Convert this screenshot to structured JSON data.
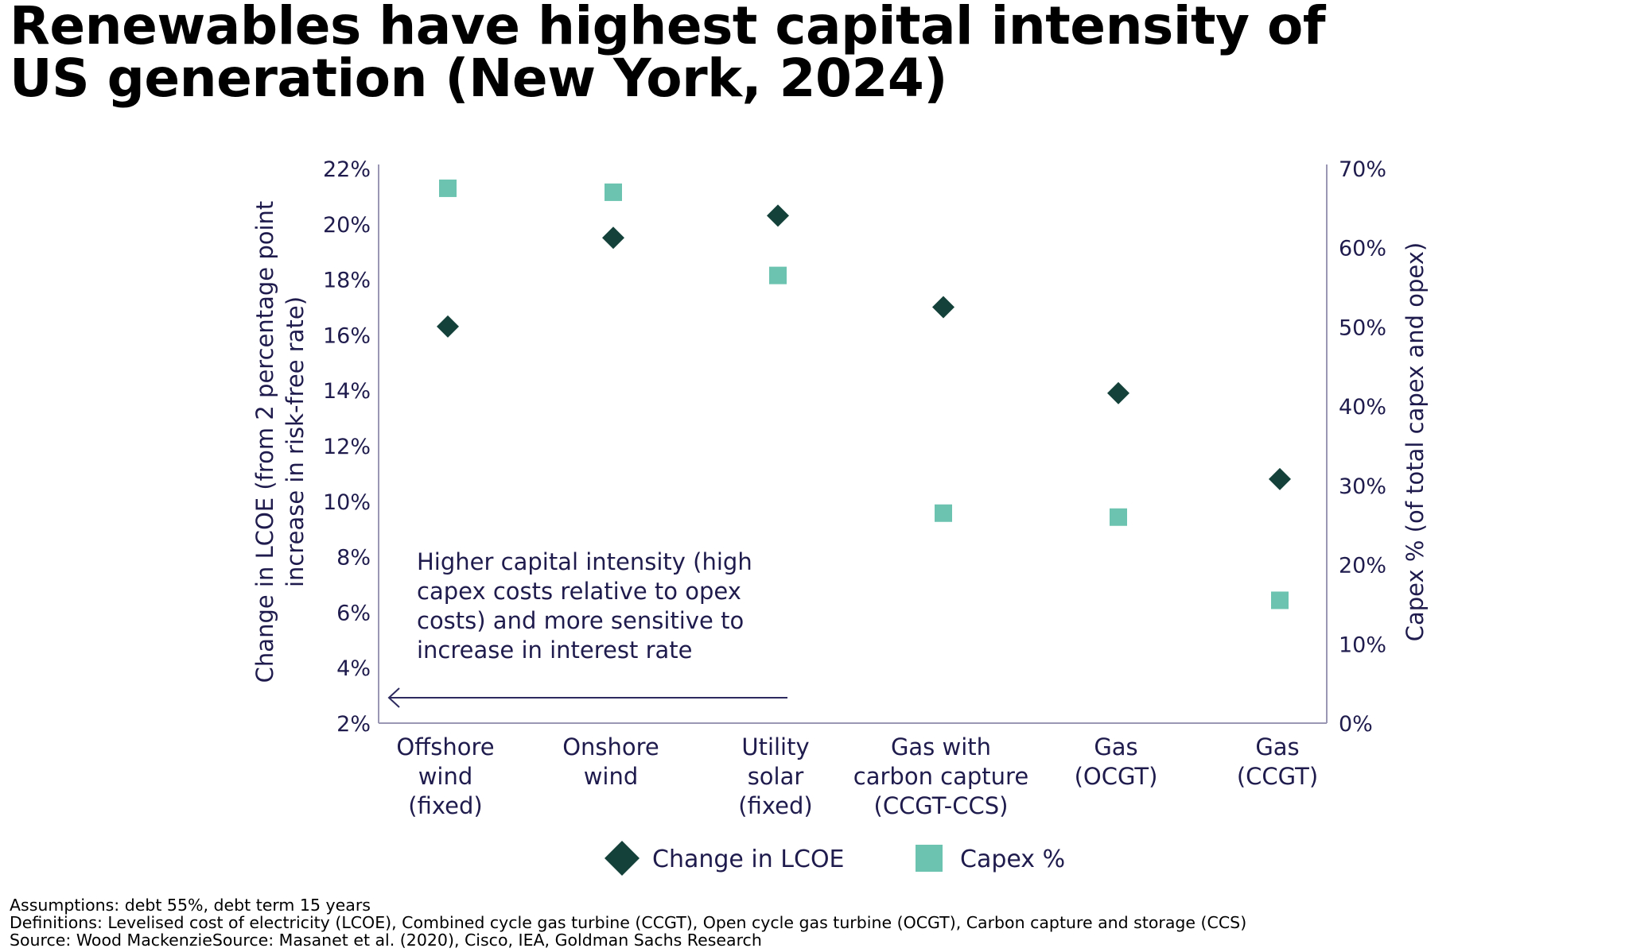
{
  "title_lines": [
    "Renewables have highest capital intensity of",
    "US generation (New York, 2024)"
  ],
  "annotation_lines": [
    "Higher capital intensity (high",
    "capex costs relative to opex",
    "costs) and more sensitive to",
    "increase in interest rate"
  ],
  "notes": {
    "assumptions": "Assumptions: debt 55%, debt term 15 years",
    "definitions": "Definitions: Levelised cost of electricity (LCOE), Combined cycle gas turbine (CCGT), Open cycle gas turbine (OCGT), Carbon capture and storage (CCS)",
    "source": "Source: Wood MackenzieSource: Masanet et al. (2020), Cisco, IEA, Goldman Sachs Research"
  },
  "colors": {
    "lcoe_marker": "#14423a",
    "capex_marker": "#6cc4b0",
    "axis": "#9a97b4",
    "text": "#1f1c4d"
  },
  "chart_data": {
    "type": "scatter",
    "categories": [
      [
        "Offshore",
        "wind",
        "(fixed)"
      ],
      [
        "Onshore",
        "wind"
      ],
      [
        "Utility",
        "solar",
        "(fixed)"
      ],
      [
        "Gas with",
        "carbon capture",
        "(CCGT-CCS)"
      ],
      [
        "Gas",
        "(OCGT)"
      ],
      [
        "Gas",
        "(CCGT)"
      ]
    ],
    "series": [
      {
        "name": "Change in LCOE",
        "axis": "left",
        "marker": "diamond",
        "values": [
          16.3,
          19.5,
          20.3,
          17.0,
          13.9,
          10.8
        ]
      },
      {
        "name": "Capex %",
        "axis": "right",
        "marker": "square",
        "values": [
          67.5,
          67.0,
          56.5,
          26.5,
          26.0,
          15.5
        ]
      }
    ],
    "y_left": {
      "label_lines": [
        "Change in LCOE (from 2 percentage point",
        "increase in risk-free rate)"
      ],
      "ticks": [
        "2%",
        "4%",
        "6%",
        "8%",
        "10%",
        "12%",
        "14%",
        "16%",
        "18%",
        "20%",
        "22%"
      ],
      "range": [
        2,
        22
      ]
    },
    "y_right": {
      "label": "Capex % (of total capex and opex)",
      "ticks": [
        "0%",
        "10%",
        "20%",
        "30%",
        "40%",
        "50%",
        "60%",
        "70%"
      ],
      "range": [
        0,
        70
      ]
    },
    "grid": false,
    "legend_position": "bottom"
  }
}
